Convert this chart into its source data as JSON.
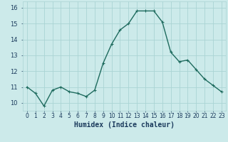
{
  "x": [
    0,
    1,
    2,
    3,
    4,
    5,
    6,
    7,
    8,
    9,
    10,
    11,
    12,
    13,
    14,
    15,
    16,
    17,
    18,
    19,
    20,
    21,
    22,
    23
  ],
  "y": [
    11.0,
    10.6,
    9.8,
    10.8,
    11.0,
    10.7,
    10.6,
    10.4,
    10.8,
    12.5,
    13.7,
    14.6,
    15.0,
    15.8,
    15.8,
    15.8,
    15.1,
    13.2,
    12.6,
    12.7,
    12.1,
    11.5,
    11.1,
    10.7
  ],
  "line_color": "#1e6b5e",
  "marker": "+",
  "markersize": 3,
  "linewidth": 1.0,
  "bg_color": "#cceaea",
  "grid_color": "#aad4d4",
  "xlabel": "Humidex (Indice chaleur)",
  "xlabel_fontsize": 7,
  "xlabel_color": "#1a3a5c",
  "yticks": [
    10,
    11,
    12,
    13,
    14,
    15,
    16
  ],
  "ylim": [
    9.5,
    16.4
  ],
  "xlim": [
    -0.5,
    23.5
  ],
  "xtick_labels": [
    "0",
    "1",
    "2",
    "3",
    "4",
    "5",
    "6",
    "7",
    "8",
    "9",
    "10",
    "11",
    "12",
    "13",
    "14",
    "15",
    "16",
    "17",
    "18",
    "19",
    "20",
    "21",
    "22",
    "23"
  ],
  "ytick_fontsize": 6,
  "xtick_fontsize": 5.5,
  "tick_color": "#1a3a5c"
}
